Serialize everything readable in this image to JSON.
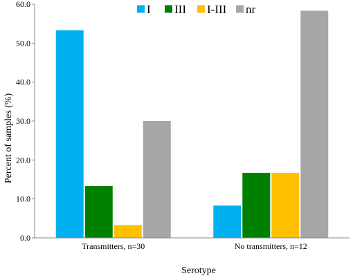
{
  "chart_data": {
    "type": "bar",
    "categories": [
      "Transmitters, n=30",
      "No transmitters, n=12"
    ],
    "series": [
      {
        "name": "I",
        "color": "#00B0F0",
        "values": [
          53.3,
          8.3
        ]
      },
      {
        "name": "III",
        "color": "#008000",
        "values": [
          13.3,
          16.7
        ]
      },
      {
        "name": "I-III",
        "color": "#FFC000",
        "values": [
          3.3,
          16.7
        ]
      },
      {
        "name": "nr",
        "color": "#A6A6A6",
        "values": [
          30.0,
          58.3
        ]
      }
    ],
    "xlabel": "Serotype",
    "ylabel": "Percent of samples (%)",
    "ylim": [
      0,
      60
    ],
    "yticks": [
      "0.0",
      "10.0",
      "20.0",
      "30.0",
      "40.0",
      "50.0",
      "60.0"
    ],
    "legend": "top-center",
    "grid": false
  }
}
